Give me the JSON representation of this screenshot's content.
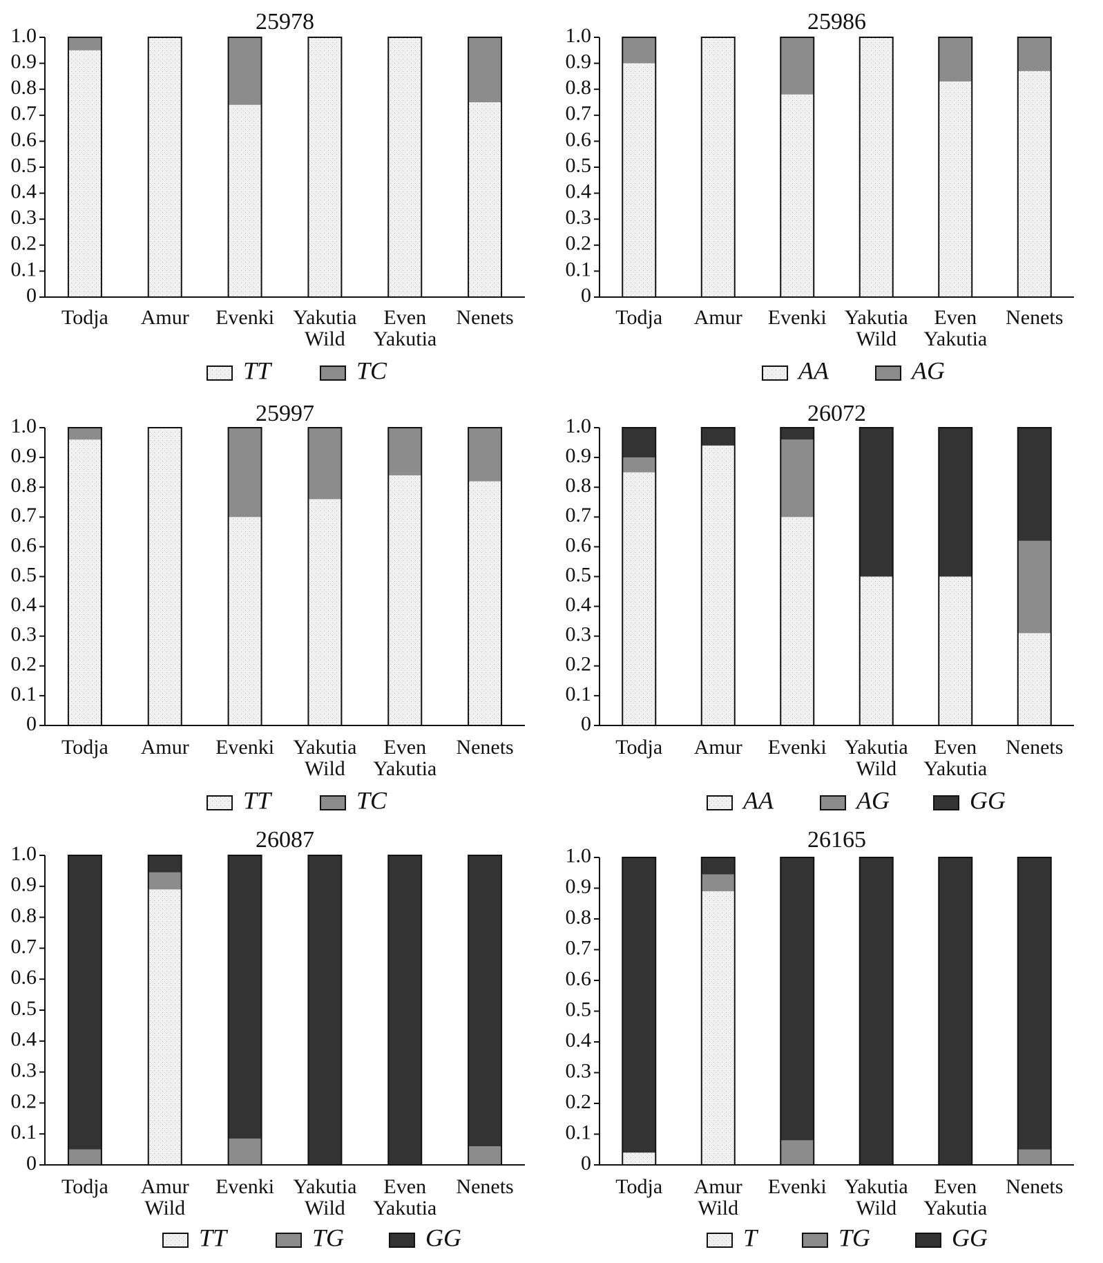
{
  "colors": {
    "light": "#efefef",
    "mid": "#8c8c8c",
    "dark": "#333333",
    "outline": "#111111"
  },
  "chart_data": [
    {
      "type": "bar",
      "stacked": true,
      "title": "25978",
      "categories": [
        [
          "Todja"
        ],
        [
          "Amur"
        ],
        [
          "Evenki"
        ],
        [
          "Yakutia",
          "Wild"
        ],
        [
          "Even",
          "Yakutia"
        ],
        [
          "Nenets"
        ]
      ],
      "series": [
        {
          "name": "TT",
          "color": "light",
          "values": [
            0.95,
            1.0,
            0.74,
            1.0,
            1.0,
            0.75
          ]
        },
        {
          "name": "TC",
          "color": "mid",
          "values": [
            0.05,
            0.0,
            0.26,
            0.0,
            0.0,
            0.25
          ]
        }
      ],
      "ylim": [
        0,
        1.0
      ],
      "yticks": [
        "0",
        "0.1",
        "0.2",
        "0.3",
        "0.4",
        "0.5",
        "0.6",
        "0.7",
        "0.8",
        "0.9",
        "1.0"
      ],
      "grid": false,
      "legend_position": "bottom"
    },
    {
      "type": "bar",
      "stacked": true,
      "title": "25986",
      "categories": [
        [
          "Todja"
        ],
        [
          "Amur"
        ],
        [
          "Evenki"
        ],
        [
          "Yakutia",
          "Wild"
        ],
        [
          "Even",
          "Yakutia"
        ],
        [
          "Nenets"
        ]
      ],
      "series": [
        {
          "name": "AA",
          "color": "light",
          "values": [
            0.9,
            1.0,
            0.78,
            1.0,
            0.83,
            0.87
          ]
        },
        {
          "name": "AG",
          "color": "mid",
          "values": [
            0.1,
            0.0,
            0.22,
            0.0,
            0.17,
            0.13
          ]
        }
      ],
      "ylim": [
        0,
        1.0
      ],
      "yticks": [
        "0",
        "0.1",
        "0.2",
        "0.3",
        "0.4",
        "0.5",
        "0.6",
        "0.7",
        "0.8",
        "0.9",
        "1.0"
      ],
      "grid": false,
      "legend_position": "bottom"
    },
    {
      "type": "bar",
      "stacked": true,
      "title": "25997",
      "categories": [
        [
          "Todja"
        ],
        [
          "Amur"
        ],
        [
          "Evenki"
        ],
        [
          "Yakutia",
          "Wild"
        ],
        [
          "Even",
          "Yakutia"
        ],
        [
          "Nenets"
        ]
      ],
      "series": [
        {
          "name": "TT",
          "color": "light",
          "values": [
            0.96,
            1.0,
            0.7,
            0.76,
            0.84,
            0.82
          ]
        },
        {
          "name": "TC",
          "color": "mid",
          "values": [
            0.04,
            0.0,
            0.3,
            0.24,
            0.16,
            0.18
          ]
        }
      ],
      "ylim": [
        0,
        1.0
      ],
      "yticks": [
        "0",
        "0.1",
        "0.2",
        "0.3",
        "0.4",
        "0.5",
        "0.6",
        "0.7",
        "0.8",
        "0.9",
        "1.0"
      ],
      "grid": false,
      "legend_position": "bottom"
    },
    {
      "type": "bar",
      "stacked": true,
      "title": "26072",
      "categories": [
        [
          "Todja"
        ],
        [
          "Amur"
        ],
        [
          "Evenki"
        ],
        [
          "Yakutia",
          "Wild"
        ],
        [
          "Even",
          "Yakutia"
        ],
        [
          "Nenets"
        ]
      ],
      "series": [
        {
          "name": "AA",
          "color": "light",
          "values": [
            0.85,
            0.94,
            0.7,
            0.5,
            0.5,
            0.31
          ]
        },
        {
          "name": "AG",
          "color": "mid",
          "values": [
            0.05,
            0.0,
            0.26,
            0.0,
            0.0,
            0.31
          ]
        },
        {
          "name": "GG",
          "color": "dark",
          "values": [
            0.1,
            0.06,
            0.04,
            0.5,
            0.5,
            0.38
          ]
        }
      ],
      "ylim": [
        0,
        1.0
      ],
      "yticks": [
        "0",
        "0.1",
        "0.2",
        "0.3",
        "0.4",
        "0.5",
        "0.6",
        "0.7",
        "0.8",
        "0.9",
        "1.0"
      ],
      "grid": false,
      "legend_position": "bottom"
    },
    {
      "type": "bar",
      "stacked": true,
      "title": "26087",
      "categories": [
        [
          "Todja"
        ],
        [
          "Amur",
          "Wild"
        ],
        [
          "Evenki"
        ],
        [
          "Yakutia",
          "Wild"
        ],
        [
          "Even",
          "Yakutia"
        ],
        [
          "Nenets"
        ]
      ],
      "series": [
        {
          "name": "TT",
          "color": "light",
          "values": [
            0.0,
            0.89,
            0.0,
            0.0,
            0.0,
            0.0
          ]
        },
        {
          "name": "TG",
          "color": "mid",
          "values": [
            0.05,
            0.055,
            0.085,
            0.0,
            0.0,
            0.06
          ]
        },
        {
          "name": "GG",
          "color": "dark",
          "values": [
            0.95,
            0.055,
            0.915,
            1.0,
            1.0,
            0.94
          ]
        }
      ],
      "ylim": [
        0,
        1.0
      ],
      "yticks": [
        "0",
        "0.1",
        "0.2",
        "0.3",
        "0.4",
        "0.5",
        "0.6",
        "0.7",
        "0.8",
        "0.9",
        "1.0"
      ],
      "grid": false,
      "legend_position": "bottom"
    },
    {
      "type": "bar",
      "stacked": true,
      "title": "26165",
      "categories": [
        [
          "Todja"
        ],
        [
          "Amur",
          "Wild"
        ],
        [
          "Evenki"
        ],
        [
          "Yakutia",
          "Wild"
        ],
        [
          "Even",
          "Yakutia"
        ],
        [
          "Nenets"
        ]
      ],
      "series": [
        {
          "name": "T",
          "color": "light",
          "values": [
            0.04,
            0.89,
            0.0,
            0.0,
            0.0,
            0.0
          ]
        },
        {
          "name": "TG",
          "color": "mid",
          "values": [
            0.0,
            0.055,
            0.08,
            0.0,
            0.0,
            0.05
          ]
        },
        {
          "name": "GG",
          "color": "dark",
          "values": [
            0.96,
            0.055,
            0.92,
            1.0,
            1.0,
            0.95
          ]
        }
      ],
      "ylim": [
        0,
        1.0
      ],
      "yticks": [
        "0",
        "0.1",
        "0.2",
        "0.3",
        "0.4",
        "0.5",
        "0.6",
        "0.7",
        "0.8",
        "0.9",
        "1.0"
      ],
      "grid": false,
      "legend_position": "bottom"
    }
  ]
}
